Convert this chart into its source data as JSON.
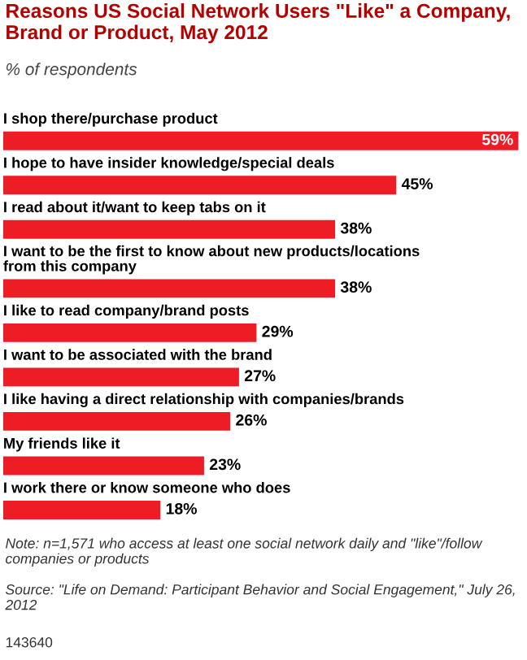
{
  "chart_data": {
    "type": "bar",
    "orientation": "horizontal",
    "title": "Reasons US Social Network Users \"Like\" a Company, Brand or Product, May 2012",
    "subtitle": "% of respondents",
    "categories": [
      "I shop there/purchase product",
      "I hope to have insider knowledge/special deals",
      "I read about it/want to keep tabs on it",
      "I want to be the first to know about new products/locations\nfrom this company",
      "I like to read company/brand posts",
      "I want to be associated with the brand",
      "I like having a direct relationship with companies/brands",
      "My friends like it",
      "I work there or know someone who does"
    ],
    "values": [
      59,
      45,
      38,
      38,
      29,
      27,
      26,
      23,
      18
    ],
    "value_labels": [
      "59%",
      "45%",
      "38%",
      "38%",
      "29%",
      "27%",
      "26%",
      "23%",
      "18%"
    ],
    "color": "#ee1c25",
    "annotations": [
      "Note: n=1,571 who access at least one social network daily and \"like\"/follow companies or products",
      "Source: \"Life on Demand: Participant Behavior and Social Engagement,\" July 26, 2012",
      "143640"
    ]
  }
}
